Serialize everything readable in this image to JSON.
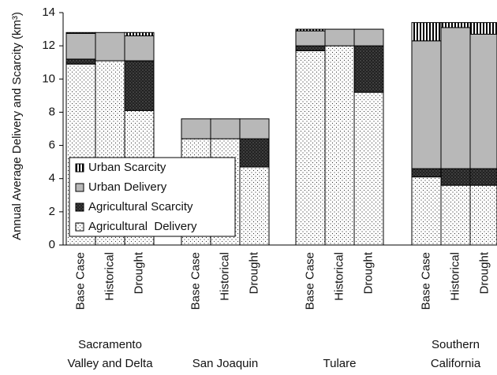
{
  "chart_data": {
    "type": "stacked-bar",
    "y_label": "Annual Average Delivery and Scarcity (km³)",
    "categories": [
      "Base Case",
      "Historical",
      "Drought",
      "Base Case",
      "Historical",
      "Drought",
      "Base Case",
      "Historical",
      "Drought",
      "Base Case",
      "Historical",
      "Drought"
    ],
    "groups": [
      {
        "label": [
          "Sacramento",
          "Valley and Delta"
        ],
        "size": 3
      },
      {
        "label": [
          "San Joaquin"
        ],
        "size": 3
      },
      {
        "label": [
          "Tulare"
        ],
        "size": 3
      },
      {
        "label": [
          "Southern",
          "California"
        ],
        "size": 3
      }
    ],
    "series": [
      {
        "name": "Agricultural  Delivery",
        "color": "#ffffff",
        "pattern": "dots",
        "values": [
          10.9,
          11.1,
          8.1,
          6.4,
          6.4,
          4.7,
          11.7,
          12.0,
          9.2,
          4.1,
          3.6,
          3.6
        ]
      },
      {
        "name": "Agricultural Scarcity",
        "color": "#2a2a2a",
        "pattern": "crosshatch",
        "values": [
          0.3,
          0,
          3.0,
          0,
          0,
          1.7,
          0.3,
          0,
          2.8,
          0.5,
          1.0,
          1.0
        ]
      },
      {
        "name": "Urban Delivery",
        "color": "#b8b8b8",
        "pattern": "solid",
        "values": [
          1.55,
          1.7,
          1.5,
          1.2,
          1.2,
          1.2,
          0.9,
          1.0,
          1.0,
          7.7,
          8.5,
          8.1
        ]
      },
      {
        "name": "Urban Scarcity",
        "color": "#ffffff",
        "pattern": "stripes",
        "values": [
          0.05,
          0,
          0.2,
          0,
          0,
          0,
          0.1,
          0,
          0,
          1.1,
          0.3,
          0.7
        ]
      }
    ],
    "ylim": [
      0,
      14
    ],
    "yticks": [
      0,
      2,
      4,
      6,
      8,
      10,
      12,
      14
    ],
    "grid": false,
    "legend": "lower left"
  }
}
